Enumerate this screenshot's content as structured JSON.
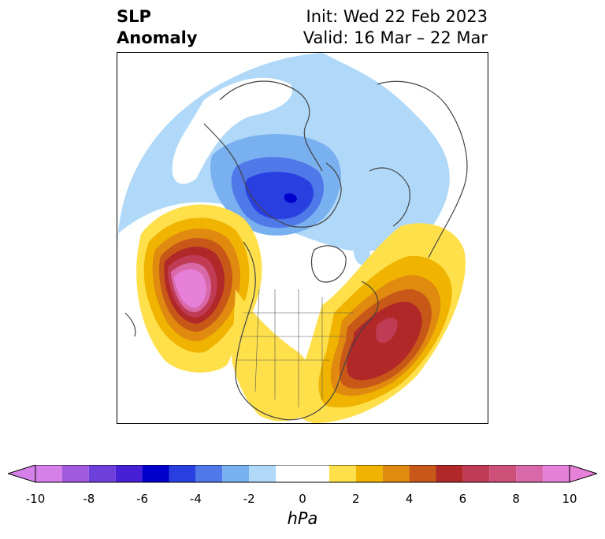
{
  "title": {
    "left_line1": "SLP",
    "left_line2": "Anomaly",
    "right_line1": "Init: Wed 22 Feb 2023",
    "right_line2": "Valid: 16 Mar – 22 Mar"
  },
  "colorbar": {
    "unit": "hPa",
    "ticks": [
      "-10",
      "-8",
      "-6",
      "-4",
      "-2",
      "0",
      "2",
      "4",
      "6",
      "8",
      "10"
    ],
    "levels": [
      -10,
      -9,
      -8,
      -7,
      -6,
      -5,
      -4,
      -3,
      -2,
      -1,
      1,
      2,
      3,
      4,
      5,
      6,
      7,
      8,
      9,
      10
    ],
    "colors": [
      "#d580e8",
      "#a05ae0",
      "#6f3fdc",
      "#4520d6",
      "#0000cc",
      "#2a3fe0",
      "#4f78e8",
      "#79b0f0",
      "#b0d8f8",
      "#ffffff",
      "#ffe04a",
      "#f0b400",
      "#e08a10",
      "#c85818",
      "#b02828",
      "#c03c54",
      "#cc5078",
      "#d868a8",
      "#e680d8"
    ],
    "extend": "both"
  },
  "map": {
    "projection": "north-polar-stereographic",
    "region": "North America / Northern Hemisphere",
    "features": [
      "coastlines",
      "country borders",
      "US state borders"
    ]
  }
}
